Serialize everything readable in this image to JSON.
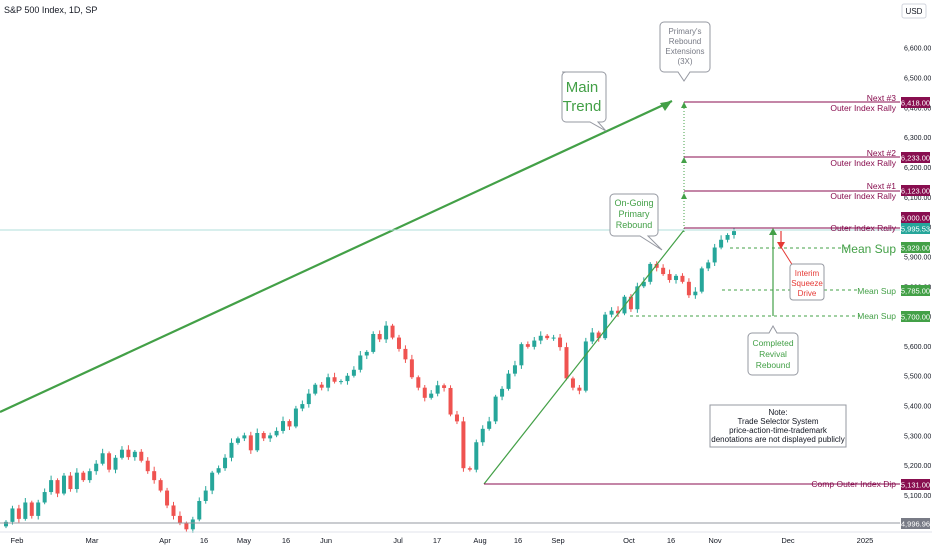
{
  "header": {
    "title": "S&P 500 Index, 1D, SP",
    "currency": "USD"
  },
  "colors": {
    "up": "#26a69a",
    "down": "#ef5350",
    "trend": "#43a047",
    "level": "#880e4f",
    "green_label": "#43a047",
    "cyan": "#b2dfdb"
  },
  "chart_data": {
    "type": "candlestick",
    "title": "S&P 500 Index, 1D, SP",
    "yaxis": {
      "min": 4980,
      "max": 6680,
      "ticks": [
        5100,
        5200,
        5300,
        5400,
        5500,
        5600,
        5700,
        5800,
        5900,
        6000,
        6100,
        6200,
        6300,
        6400,
        6500,
        6600
      ]
    },
    "tick_labels": [
      "5,100.00",
      "5,200.00",
      "5,300.00",
      "5,400.00",
      "5,500.00",
      "5,600.00",
      "5,700.00",
      "5,800.00",
      "5,900.00",
      "6,000.00",
      "6,100.00",
      "6,200.00",
      "6,300.00",
      "6,400.00",
      "6,500.00",
      "6,600.00"
    ],
    "xaxis": {
      "labels": [
        "Feb",
        "Mar",
        "Apr",
        "16",
        "May",
        "16",
        "Jun",
        "Jul",
        "17",
        "Aug",
        "16",
        "Sep",
        "Oct",
        "16",
        "Nov",
        "Dec",
        "2025"
      ]
    },
    "closes": [
      5010,
      5055,
      5020,
      5075,
      5030,
      5075,
      5110,
      5150,
      5105,
      5165,
      5120,
      5175,
      5150,
      5180,
      5205,
      5240,
      5185,
      5225,
      5252,
      5227,
      5245,
      5215,
      5180,
      5150,
      5115,
      5065,
      5030,
      5005,
      4985,
      5018,
      5080,
      5115,
      5175,
      5190,
      5225,
      5275,
      5290,
      5300,
      5250,
      5308,
      5290,
      5300,
      5315,
      5348,
      5330,
      5390,
      5405,
      5440,
      5470,
      5460,
      5495,
      5480,
      5482,
      5500,
      5520,
      5568,
      5580,
      5640,
      5622,
      5668,
      5628,
      5590,
      5555,
      5495,
      5460,
      5426,
      5440,
      5468,
      5459,
      5370,
      5347,
      5190,
      5185,
      5277,
      5322,
      5347,
      5430,
      5456,
      5507,
      5535,
      5606,
      5597,
      5618,
      5634,
      5626,
      5628,
      5596,
      5491,
      5460,
      5450,
      5615,
      5645,
      5626,
      5705,
      5718,
      5709,
      5765,
      5723,
      5800,
      5815,
      5875,
      5862,
      5841,
      5821,
      5835,
      5815,
      5770,
      5782,
      5860,
      5880,
      5930,
      5956,
      5972,
      5985
    ],
    "price_labels": {
      "p6418": "6,418.00",
      "p6233": "6,233.00",
      "p6123": "6,123.00",
      "p6000": "6,000.00",
      "p5995": "5,995.53",
      "p5929": "5,929.00",
      "p5785": "5,785.00",
      "p5700": "5,700.00",
      "p5131": "5,131.00",
      "p4996": "4,996.96"
    },
    "levels": {
      "next3": "Next #3",
      "next3_sub": "Outer Index Rally",
      "next2": "Next #2",
      "next2_sub": "Outer Index Rally",
      "next1": "Next #1",
      "next1_sub": "Outer Index Rally",
      "outer": "Outer Index Rally",
      "mean_sup_big": "Mean Sup",
      "mean_sup1": "Mean Sup",
      "mean_sup2": "Mean Sup",
      "comp": "Comp Outer Index Dip"
    },
    "annotations": {
      "main_trend": [
        "Main",
        "Trend"
      ],
      "primary_ext": [
        "Primary's",
        "Rebound",
        "Extensions",
        "(3X)"
      ],
      "ongoing": [
        "On-Going",
        "Primary",
        "Rebound"
      ],
      "interim": [
        "Interim",
        "Squeeze",
        "Drive"
      ],
      "completed": [
        "Completed",
        "Revival",
        "Rebound"
      ],
      "note": [
        "Note:",
        "Trade Selector System",
        "price-action-time-trademark",
        "denotations are not displayed publicly"
      ]
    }
  }
}
